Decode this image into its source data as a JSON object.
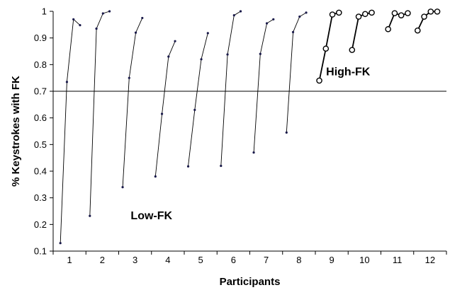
{
  "chart_data": {
    "type": "line",
    "title": "",
    "xlabel": "Participants",
    "ylabel": "% Keystrokes with FK",
    "xlim": [
      0.5,
      12.5
    ],
    "ylim": [
      0.1,
      1.0
    ],
    "x_ticks": [
      "1",
      "2",
      "3",
      "4",
      "5",
      "6",
      "7",
      "8",
      "9",
      "10",
      "11",
      "12"
    ],
    "y_ticks": [
      "0.1",
      "0.2",
      "0.3",
      "0.4",
      "0.5",
      "0.6",
      "0.7",
      "0.8",
      "0.9",
      "1"
    ],
    "reference_line": {
      "y": 0.7
    },
    "annotations": [
      {
        "text": "Low-FK",
        "x": 3.5,
        "y": 0.22
      },
      {
        "text": "High-FK",
        "x": 9.5,
        "y": 0.76
      }
    ],
    "series": [
      {
        "participant": 1,
        "group": "low",
        "x": [
          0.72,
          0.92,
          1.12,
          1.32
        ],
        "y": [
          0.13,
          0.735,
          0.97,
          0.948
        ]
      },
      {
        "participant": 2,
        "group": "low",
        "x": [
          1.62,
          1.82,
          2.02,
          2.22
        ],
        "y": [
          0.232,
          0.935,
          0.992,
          1.0
        ]
      },
      {
        "participant": 3,
        "group": "low",
        "x": [
          2.62,
          2.82,
          3.02,
          3.22
        ],
        "y": [
          0.34,
          0.75,
          0.92,
          0.975
        ]
      },
      {
        "participant": 4,
        "group": "low",
        "x": [
          3.62,
          3.82,
          4.02,
          4.22
        ],
        "y": [
          0.38,
          0.615,
          0.83,
          0.888
        ]
      },
      {
        "participant": 5,
        "group": "low",
        "x": [
          4.62,
          4.82,
          5.02,
          5.22
        ],
        "y": [
          0.418,
          0.63,
          0.82,
          0.918
        ]
      },
      {
        "participant": 6,
        "group": "low",
        "x": [
          5.62,
          5.82,
          6.02,
          6.22
        ],
        "y": [
          0.42,
          0.838,
          0.985,
          1.0
        ]
      },
      {
        "participant": 7,
        "group": "low",
        "x": [
          6.62,
          6.82,
          7.02,
          7.22
        ],
        "y": [
          0.47,
          0.84,
          0.955,
          0.97
        ]
      },
      {
        "participant": 8,
        "group": "low",
        "x": [
          7.62,
          7.82,
          8.02,
          8.22
        ],
        "y": [
          0.545,
          0.922,
          0.98,
          0.995
        ]
      },
      {
        "participant": 9,
        "group": "high",
        "x": [
          8.62,
          8.82,
          9.02,
          9.22
        ],
        "y": [
          0.74,
          0.86,
          0.988,
          0.995
        ]
      },
      {
        "participant": 10,
        "group": "high",
        "x": [
          9.62,
          9.82,
          10.02,
          10.22
        ],
        "y": [
          0.855,
          0.98,
          0.99,
          0.995
        ]
      },
      {
        "participant": 11,
        "group": "high",
        "x": [
          10.72,
          10.92,
          11.12,
          11.32
        ],
        "y": [
          0.933,
          0.993,
          0.985,
          0.993
        ]
      },
      {
        "participant": 12,
        "group": "high",
        "x": [
          11.62,
          11.82,
          12.02,
          12.22
        ],
        "y": [
          0.928,
          0.98,
          0.999,
          0.999
        ]
      }
    ]
  }
}
